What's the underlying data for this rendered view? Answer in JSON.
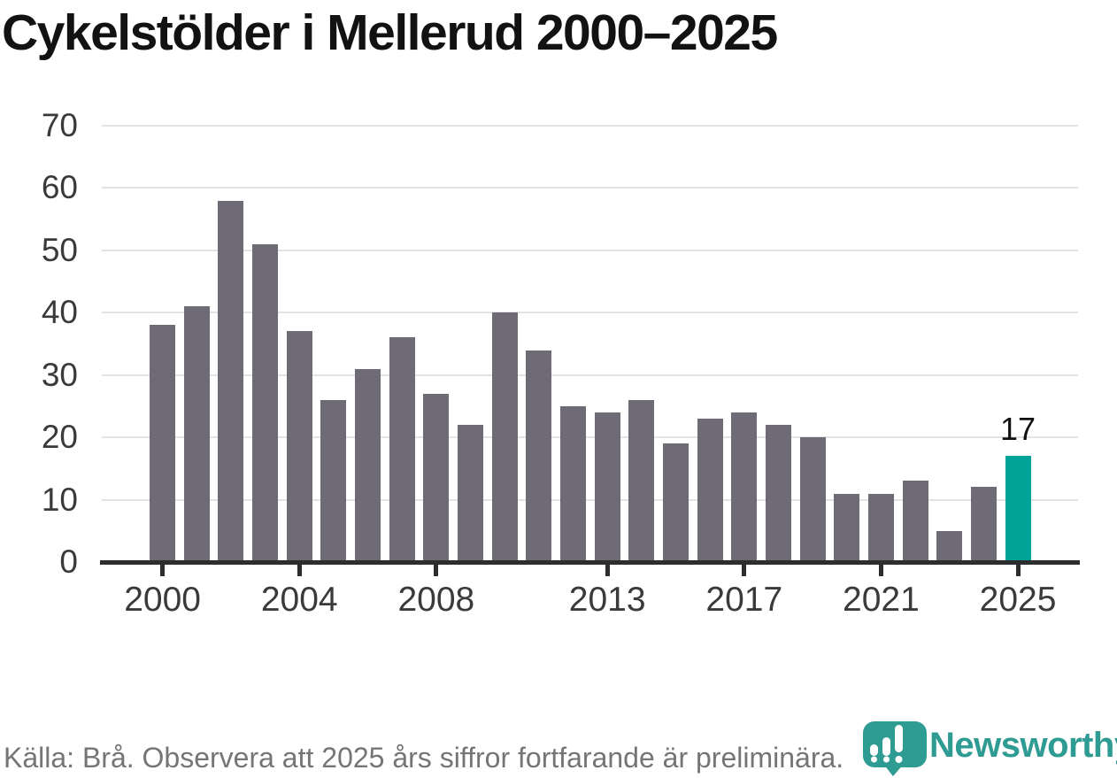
{
  "title": "Cykelstölder i Mellerud 2000–2025",
  "chart_data": {
    "type": "bar",
    "title": "Cykelstölder i Mellerud 2000–2025",
    "x": [
      2000,
      2001,
      2002,
      2003,
      2004,
      2005,
      2006,
      2007,
      2008,
      2009,
      2010,
      2011,
      2012,
      2013,
      2014,
      2015,
      2016,
      2017,
      2018,
      2019,
      2020,
      2021,
      2022,
      2023,
      2024,
      2025
    ],
    "values": [
      38,
      41,
      58,
      51,
      37,
      26,
      31,
      36,
      27,
      22,
      40,
      34,
      25,
      24,
      26,
      19,
      23,
      24,
      22,
      20,
      11,
      11,
      13,
      5,
      12,
      17
    ],
    "highlight": {
      "x": 2025,
      "value": 17,
      "label": "17"
    },
    "xlabel": "",
    "ylabel": "",
    "ylim": [
      0,
      70
    ],
    "yticks": [
      0,
      10,
      20,
      30,
      40,
      50,
      60,
      70
    ],
    "xticks": [
      2000,
      2004,
      2008,
      2013,
      2017,
      2021,
      2025
    ],
    "grid": "horizontal",
    "legend": "none",
    "bar_color": "#6e6b76",
    "highlight_color": "#00a396"
  },
  "footer": {
    "source_note": "Källa: Brå. Observera att 2025 års siffror fortfarande är preliminära."
  },
  "branding": {
    "wordmark": "Newsworthy",
    "logo_icon": "newsworthy-pin-barchart-icon",
    "teal": "#2f9c94"
  }
}
